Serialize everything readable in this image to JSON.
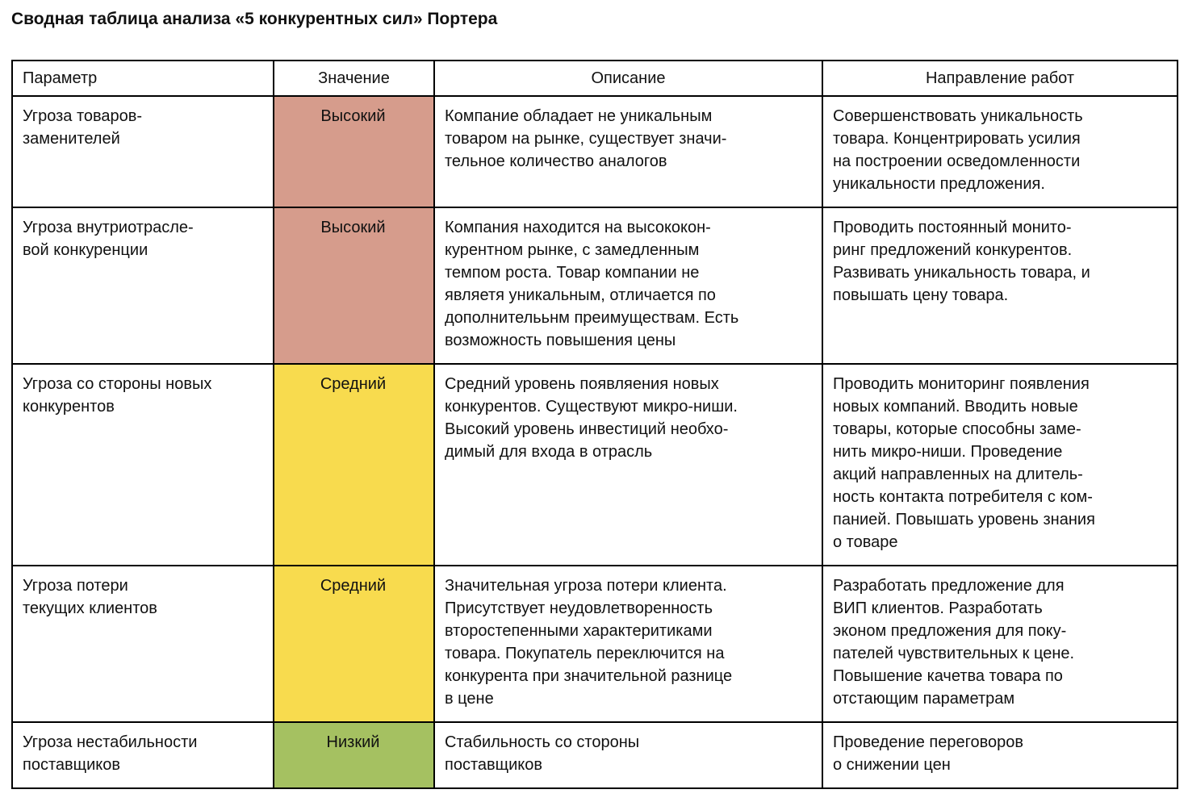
{
  "page": {
    "title": "Сводная таблица анализа «5 конкурентных сил» Портера"
  },
  "colors": {
    "high": "#d69c8c",
    "medium": "#f8db4e",
    "low": "#a5c161"
  },
  "table": {
    "headers": [
      "Параметр",
      "Значение",
      "Описание",
      "Направление работ"
    ],
    "rows": [
      {
        "parameter": "Угроза товаров-\nзаменителей",
        "value": "Высокий",
        "value_level": "high",
        "value_color": "#d69c8c",
        "description": "Компание обладает не уникальным\nтоваром на рынке, существует значи-\nтельное количество аналогов",
        "direction": "Совершенствовать уникальность\nтовара. Концентрировать усилия\nна построении осведомленности\nуникальности предложения."
      },
      {
        "parameter": "Угроза внутриотрасле-\nвой конкуренции",
        "value": "Высокий",
        "value_level": "high",
        "value_color": "#d69c8c",
        "description": "Компания находится на высококон-\nкурентном рынке, с замедленным\nтемпом роста. Товар компании не\nявляетя уникальным, отличается по\nдополнителььнм преимуществам. Есть\nвозможность повышения цены",
        "direction": "Проводить постоянный монито-\nринг предложений конкурентов.\nРазвивать уникальность товара, и\nповышать цену товара."
      },
      {
        "parameter": "Угроза со стороны новых\nконкурентов",
        "value": "Средний",
        "value_level": "medium",
        "value_color": "#f8db4e",
        "description": "Средний уровень появляения новых\nконкурентов. Существуют микро-ниши.\nВысокий уровень инвестиций необхо-\nдимый для входа в отрасль",
        "direction": "Проводить мониторинг появления\nновых компаний. Вводить новые\nтовары, которые способны заме-\nнить микро-ниши. Проведение\nакций направленных на длитель-\nность контакта потребителя с ком-\nпанией. Повышать уровень знания\nо товаре"
      },
      {
        "parameter": "Угроза потери\nтекущих клиентов",
        "value": "Средний",
        "value_level": "medium",
        "value_color": "#f8db4e",
        "description": "Значительная угроза потери клиента.\nПрисутствует неудовлетворенность\nвторостепенными характеритиками\nтовара. Покупатель переключится на\nконкурента при значительной разнице\nв цене",
        "direction": "Разработать предложение для\nВИП клиентов. Разработать\nэконом предложения для поку-\nпателей чувствительных к цене.\nПовышение качетва товара по\nотстающим параметрам"
      },
      {
        "parameter": "Угроза нестабильности\nпоставщиков",
        "value": "Низкий",
        "value_level": "low",
        "value_color": "#a5c161",
        "description": "Стабильность со стороны\nпоставщиков",
        "direction": "Проведение переговоров\nо снижении цен"
      }
    ]
  }
}
